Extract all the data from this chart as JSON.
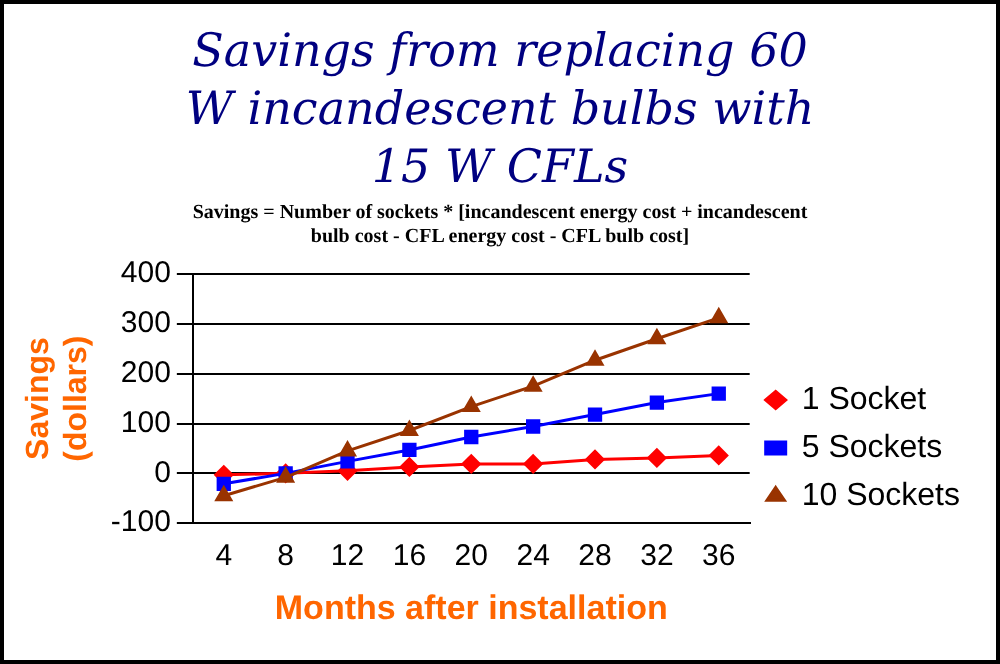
{
  "chart_data": {
    "type": "line",
    "title": "Savings from replacing 60 W incandescent bulbs with 15 W CFLs",
    "subtitle": "Savings = Number of sockets * [incandescent energy cost + incandescent bulb cost - CFL energy cost - CFL bulb cost]",
    "xlabel": "Months after installation",
    "ylabel": "Savings (dollars)",
    "categories": [
      "4",
      "8",
      "12",
      "16",
      "20",
      "24",
      "28",
      "32",
      "36"
    ],
    "series": [
      {
        "name": "1 Socket",
        "color": "#ff0000",
        "marker": "diamond",
        "values": [
          -3,
          0,
          5,
          13,
          19,
          19,
          28,
          31,
          36
        ]
      },
      {
        "name": "5 Sockets",
        "color": "#0000ff",
        "marker": "square",
        "values": [
          -21,
          0,
          24,
          47,
          73,
          94,
          118,
          142,
          160
        ]
      },
      {
        "name": "10 Sockets",
        "color": "#993300",
        "marker": "triangle",
        "values": [
          -45,
          -8,
          45,
          86,
          134,
          175,
          227,
          270,
          312
        ]
      }
    ],
    "ylim": [
      -100,
      400
    ],
    "yticks": [
      -100,
      0,
      100,
      200,
      300,
      400
    ],
    "grid": "y",
    "legend": "right"
  }
}
